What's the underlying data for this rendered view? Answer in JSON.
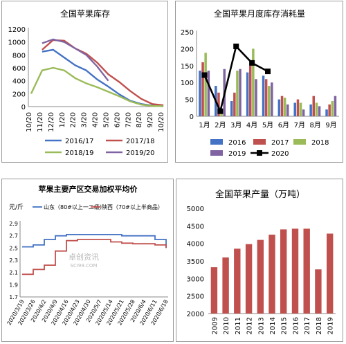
{
  "chart_data": [
    {
      "type": "line",
      "title": "全国苹果库存",
      "xlabel": "",
      "ylabel": "",
      "ylim": [
        0,
        1200
      ],
      "yticks": [
        0,
        200,
        400,
        600,
        800,
        1000,
        1200
      ],
      "categories": [
        "10/20",
        "11/20",
        "12/20",
        "1/20",
        "2/20",
        "3/20",
        "4/20",
        "5/20",
        "6/20",
        "7/20",
        "8/20",
        "9/20",
        "10/20"
      ],
      "grid": false,
      "legend": "bottom",
      "series": [
        {
          "name": "2016/17",
          "color": "#4472c4",
          "values": [
            null,
            850,
            880,
            760,
            640,
            560,
            420,
            310,
            190,
            90,
            40,
            15,
            5
          ]
        },
        {
          "name": "2017/18",
          "color": "#c0504d",
          "values": [
            null,
            880,
            1030,
            1020,
            900,
            820,
            680,
            500,
            380,
            240,
            120,
            40,
            20
          ]
        },
        {
          "name": "2018/19",
          "color": "#9bbb59",
          "values": [
            200,
            560,
            600,
            560,
            440,
            360,
            300,
            230,
            160,
            80,
            30,
            10,
            5
          ]
        },
        {
          "name": "2019/20",
          "color": "#8064a2",
          "values": [
            null,
            980,
            1040,
            1000,
            900,
            800,
            620,
            400,
            null,
            null,
            null,
            null,
            null
          ]
        }
      ]
    },
    {
      "type": "bar",
      "title": "全国苹果月度库存消耗量",
      "categories": [
        "1月",
        "2月",
        "3月",
        "4月",
        "5月",
        "6月",
        "7月",
        "8月",
        "9月"
      ],
      "ylim": [
        0,
        250
      ],
      "yticks": [
        0,
        50,
        100,
        150,
        200,
        250
      ],
      "legend": "bottom",
      "series": [
        {
          "name": "2016",
          "kind": "bar",
          "color": "#4472c4",
          "values": [
            135,
            90,
            45,
            130,
            120,
            50,
            40,
            35,
            20
          ]
        },
        {
          "name": "2017",
          "kind": "bar",
          "color": "#c0504d",
          "values": [
            160,
            70,
            70,
            150,
            110,
            60,
            50,
            60,
            35
          ]
        },
        {
          "name": "2018",
          "kind": "bar",
          "color": "#9bbb59",
          "values": [
            188,
            15,
            135,
            200,
            90,
            55,
            40,
            40,
            45
          ]
        },
        {
          "name": "2019",
          "kind": "bar",
          "color": "#8064a2",
          "values": [
            135,
            140,
            140,
            110,
            100,
            35,
            20,
            30,
            60
          ]
        },
        {
          "name": "2020",
          "kind": "line",
          "color": "#000000",
          "values": [
            122,
            15,
            207,
            158,
            133,
            null,
            null,
            null,
            null
          ]
        }
      ]
    },
    {
      "type": "line",
      "title": "苹果主要产区交易加权平均价",
      "ylabel": "元/斤",
      "ylim": [
        1.7,
        2.9
      ],
      "yticks": [
        1.7,
        1.9,
        2.1,
        2.3,
        2.5,
        2.7,
        2.9
      ],
      "categories": [
        "2020/3/19",
        "2020/3/26",
        "2020/4/2",
        "2020/4/9",
        "2020/4/16",
        "2020/4/23",
        "2020/4/30",
        "2020/5/7",
        "2020/5/14",
        "2020/5/21",
        "2020/5/28",
        "2020/6/4",
        "2020/6/11",
        "2020/6/18"
      ],
      "legend": "top",
      "series": [
        {
          "name": "山东（80#以上一二级）",
          "color": "#4472c4",
          "values": [
            2.52,
            2.55,
            2.64,
            2.7,
            2.72,
            2.72,
            2.72,
            2.72,
            2.72,
            2.7,
            2.7,
            2.7,
            2.64,
            2.5
          ]
        },
        {
          "name": "陕西（70#以上半商品）",
          "color": "#c0504d",
          "values": [
            2.07,
            2.15,
            2.22,
            2.45,
            2.62,
            2.64,
            2.64,
            2.64,
            2.6,
            2.58,
            2.57,
            2.57,
            2.55,
            2.5
          ]
        }
      ]
    },
    {
      "type": "bar",
      "title": "全国苹果产量（万吨）",
      "categories": [
        "2009",
        "2010",
        "2011",
        "2012",
        "2013",
        "2014",
        "2015",
        "2016",
        "2017",
        "2018",
        "2019"
      ],
      "values": [
        3320,
        3600,
        3850,
        3980,
        4100,
        4250,
        4400,
        4420,
        4420,
        3260,
        4280
      ],
      "color": "#c0504d",
      "ylim": [
        2000,
        5000
      ],
      "yticks": [
        2000,
        2500,
        3000,
        3500,
        4000,
        4500,
        5000
      ],
      "legend": "none"
    }
  ],
  "watermark": {
    "text": "卓创资讯",
    "sub": "SCI99.COM"
  }
}
